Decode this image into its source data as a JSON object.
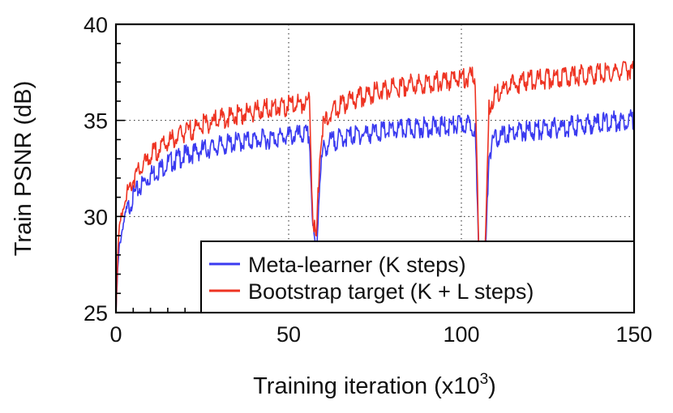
{
  "chart_data": {
    "type": "line",
    "xlabel": "Training iteration (x10",
    "xlabel_sup": "3",
    "xlabel_close": ")",
    "ylabel": "Train PSNR (dB)",
    "xlim": [
      0,
      150
    ],
    "ylim": [
      25,
      40
    ],
    "x_ticks": [
      0,
      50,
      100,
      150
    ],
    "y_ticks": [
      25,
      30,
      35,
      40
    ],
    "x_tick_labels": [
      "0",
      "50",
      "100",
      "150"
    ],
    "y_tick_labels": [
      "25",
      "30",
      "35",
      "40"
    ],
    "grid": "dotted at x = 50, 100 and y = 30, 35",
    "legend_position": "bottom-right",
    "series": [
      {
        "name": "Meta-learner (K steps)",
        "color": "#3a3af0",
        "points": [
          [
            0,
            25.0
          ],
          [
            0.5,
            27.2
          ],
          [
            1,
            28.5
          ],
          [
            2,
            29.6
          ],
          [
            3,
            30.3
          ],
          [
            5,
            31.2
          ],
          [
            8,
            31.9
          ],
          [
            10,
            32.3
          ],
          [
            15,
            32.9
          ],
          [
            20,
            33.3
          ],
          [
            25,
            33.6
          ],
          [
            30,
            33.8
          ],
          [
            35,
            34.0
          ],
          [
            40,
            34.1
          ],
          [
            45,
            34.2
          ],
          [
            50,
            34.3
          ],
          [
            55,
            34.4
          ],
          [
            56,
            34.3
          ],
          [
            57,
            29.5
          ],
          [
            58,
            28.0
          ],
          [
            59,
            32.2
          ],
          [
            60,
            33.6
          ],
          [
            62,
            34.0
          ],
          [
            65,
            34.2
          ],
          [
            70,
            34.4
          ],
          [
            75,
            34.5
          ],
          [
            80,
            34.6
          ],
          [
            85,
            34.7
          ],
          [
            90,
            34.8
          ],
          [
            95,
            34.8
          ],
          [
            100,
            34.9
          ],
          [
            103,
            34.9
          ],
          [
            104,
            34.8
          ],
          [
            105,
            28.0
          ],
          [
            106,
            27.5
          ],
          [
            107,
            28.0
          ],
          [
            108,
            33.5
          ],
          [
            110,
            34.2
          ],
          [
            115,
            34.5
          ],
          [
            120,
            34.6
          ],
          [
            125,
            34.7
          ],
          [
            130,
            34.8
          ],
          [
            135,
            34.9
          ],
          [
            140,
            35.0
          ],
          [
            145,
            35.1
          ],
          [
            150,
            35.2
          ]
        ]
      },
      {
        "name": "Bootstrap target (K + L steps)",
        "color": "#ee3322",
        "points": [
          [
            0,
            25.0
          ],
          [
            0.5,
            28.0
          ],
          [
            1,
            29.5
          ],
          [
            2,
            30.5
          ],
          [
            3,
            31.2
          ],
          [
            5,
            32.1
          ],
          [
            8,
            32.8
          ],
          [
            10,
            33.3
          ],
          [
            15,
            34.0
          ],
          [
            20,
            34.5
          ],
          [
            25,
            34.9
          ],
          [
            30,
            35.2
          ],
          [
            35,
            35.4
          ],
          [
            40,
            35.6
          ],
          [
            45,
            35.8
          ],
          [
            50,
            35.9
          ],
          [
            55,
            36.1
          ],
          [
            56,
            36.2
          ],
          [
            57,
            30.0
          ],
          [
            58,
            28.8
          ],
          [
            59,
            33.5
          ],
          [
            60,
            34.8
          ],
          [
            62,
            35.5
          ],
          [
            65,
            35.9
          ],
          [
            70,
            36.3
          ],
          [
            75,
            36.6
          ],
          [
            80,
            36.8
          ],
          [
            85,
            37.0
          ],
          [
            90,
            37.1
          ],
          [
            95,
            37.2
          ],
          [
            100,
            37.3
          ],
          [
            103,
            37.4
          ],
          [
            104,
            37.3
          ],
          [
            105,
            28.5
          ],
          [
            106,
            28.2
          ],
          [
            107,
            28.8
          ],
          [
            108,
            35.8
          ],
          [
            110,
            36.6
          ],
          [
            115,
            37.0
          ],
          [
            120,
            37.2
          ],
          [
            125,
            37.3
          ],
          [
            130,
            37.4
          ],
          [
            135,
            37.5
          ],
          [
            140,
            37.6
          ],
          [
            145,
            37.7
          ],
          [
            150,
            37.8
          ]
        ]
      }
    ]
  }
}
